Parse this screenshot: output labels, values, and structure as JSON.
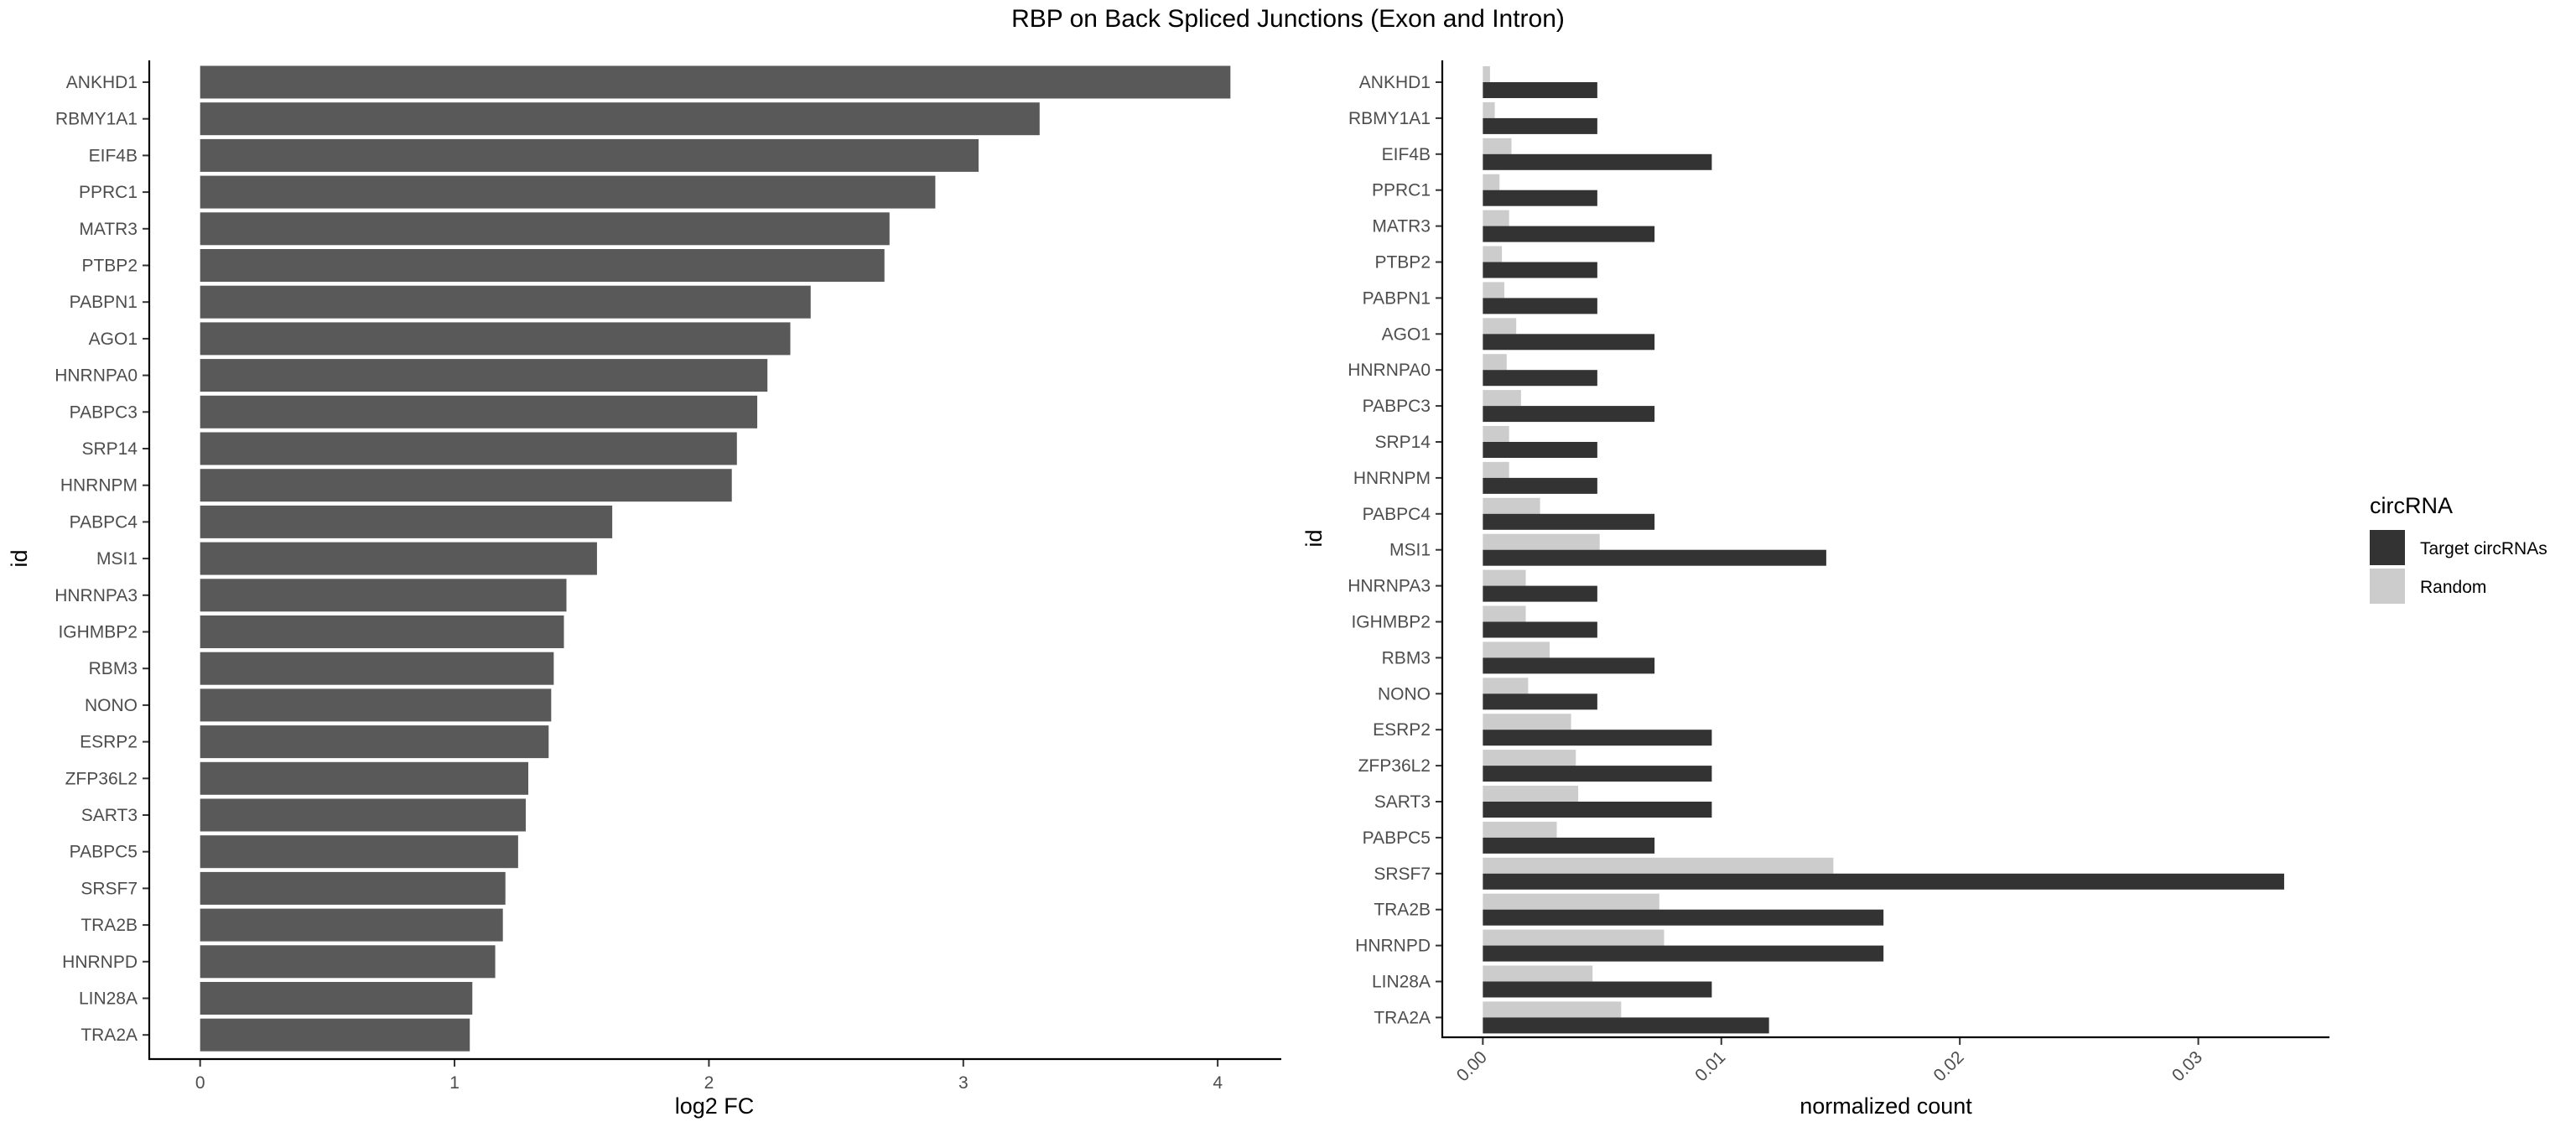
{
  "figure": {
    "title": "RBP on Back Spliced Junctions (Exon and Intron)"
  },
  "chart_data": [
    {
      "type": "bar",
      "orientation": "horizontal",
      "title": "",
      "xlabel": "log2 FC",
      "ylabel": "id",
      "xlim": [
        -0.2,
        4.25
      ],
      "x_ticks": [
        "0",
        "1",
        "2",
        "3",
        "4"
      ],
      "bar_color": "#595959",
      "grid": false,
      "categories": [
        "ANKHD1",
        "RBMY1A1",
        "EIF4B",
        "PPRC1",
        "MATR3",
        "PTBP2",
        "PABPN1",
        "AGO1",
        "HNRNPA0",
        "PABPC3",
        "SRP14",
        "HNRNPM",
        "PABPC4",
        "MSI1",
        "HNRNPA3",
        "IGHMBP2",
        "RBM3",
        "NONO",
        "ESRP2",
        "ZFP36L2",
        "SART3",
        "PABPC5",
        "SRSF7",
        "TRA2B",
        "HNRNPD",
        "LIN28A",
        "TRA2A"
      ],
      "values": [
        4.05,
        3.3,
        3.06,
        2.89,
        2.71,
        2.69,
        2.4,
        2.32,
        2.23,
        2.19,
        2.11,
        2.09,
        1.62,
        1.56,
        1.44,
        1.43,
        1.39,
        1.38,
        1.37,
        1.29,
        1.28,
        1.25,
        1.2,
        1.19,
        1.16,
        1.07,
        1.06
      ]
    },
    {
      "type": "bar",
      "orientation": "horizontal",
      "grouping": "dodge",
      "title": "",
      "xlabel": "normalized count",
      "ylabel": "id",
      "xlim": [
        -0.0017,
        0.0355
      ],
      "x_ticks": [
        "0.00",
        "0.01",
        "0.02",
        "0.03"
      ],
      "x_tick_rotation": -45,
      "grid": false,
      "legend": {
        "title": "circRNA",
        "position": "right"
      },
      "categories": [
        "ANKHD1",
        "RBMY1A1",
        "EIF4B",
        "PPRC1",
        "MATR3",
        "PTBP2",
        "PABPN1",
        "AGO1",
        "HNRNPA0",
        "PABPC3",
        "SRP14",
        "HNRNPM",
        "PABPC4",
        "MSI1",
        "HNRNPA3",
        "IGHMBP2",
        "RBM3",
        "NONO",
        "ESRP2",
        "ZFP36L2",
        "SART3",
        "PABPC5",
        "SRSF7",
        "TRA2B",
        "HNRNPD",
        "LIN28A",
        "TRA2A"
      ],
      "series": [
        {
          "name": "Target circRNAs",
          "color": "#333333",
          "values": [
            0.0048,
            0.0048,
            0.0096,
            0.0048,
            0.0072,
            0.0048,
            0.0048,
            0.0072,
            0.0048,
            0.0072,
            0.0048,
            0.0048,
            0.0072,
            0.0144,
            0.0048,
            0.0048,
            0.0072,
            0.0048,
            0.0096,
            0.0096,
            0.0096,
            0.0072,
            0.0336,
            0.0168,
            0.0168,
            0.0096,
            0.012
          ]
        },
        {
          "name": "Random",
          "color": "#cccccc",
          "values": [
            0.0003,
            0.0005,
            0.0012,
            0.0007,
            0.0011,
            0.0008,
            0.0009,
            0.0014,
            0.001,
            0.0016,
            0.0011,
            0.0011,
            0.0024,
            0.0049,
            0.0018,
            0.0018,
            0.0028,
            0.0019,
            0.0037,
            0.0039,
            0.004,
            0.0031,
            0.0147,
            0.0074,
            0.0076,
            0.0046,
            0.0058
          ]
        }
      ]
    }
  ]
}
